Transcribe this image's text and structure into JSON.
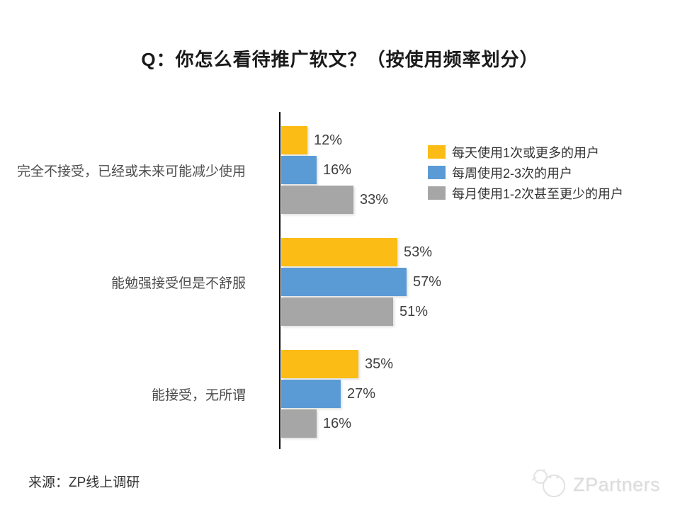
{
  "title": "Q：你怎么看待推广软文？（按使用频率划分）",
  "source": "来源：ZP线上调研",
  "logo": {
    "text": "ZPartners",
    "icon": "fish-bubbles-icon"
  },
  "chart_data": {
    "type": "bar",
    "orientation": "horizontal",
    "title": "Q：你怎么看待推广软文？（按使用频率划分）",
    "categories": [
      "完全不接受，已经或未来可能减少使用",
      "能勉强接受但是不舒服",
      "能接受，无所谓"
    ],
    "series": [
      {
        "name": "每天使用1次或更多的用户",
        "color": "#FBBC15",
        "values": [
          12,
          53,
          35
        ]
      },
      {
        "name": "每周使用2-3次的用户",
        "color": "#5B9BD5",
        "values": [
          16,
          57,
          27
        ]
      },
      {
        "name": "每月使用1-2次甚至更少的用户",
        "color": "#A6A6A6",
        "values": [
          33,
          51,
          16
        ]
      }
    ],
    "value_suffix": "%",
    "xlim": [
      0,
      60
    ],
    "grid": false,
    "legend_position": "upper-right",
    "axis_color": "#000000"
  }
}
